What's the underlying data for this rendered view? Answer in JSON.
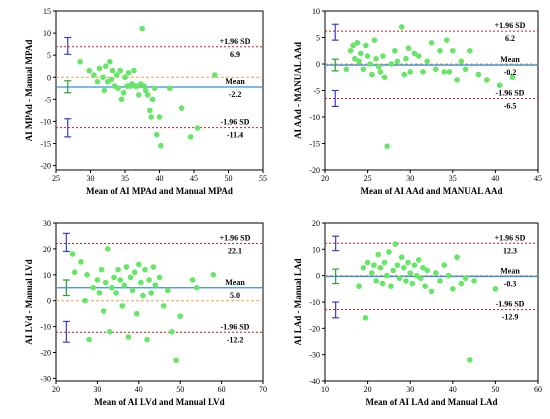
{
  "colors": {
    "mean": "#3a8fd6",
    "limit": "#cc1f1f",
    "zero": "#e8a35a",
    "point": "#66e566",
    "ci_mean": "#2e9c3a",
    "ci_limit": "#3b3bcc"
  },
  "chart_data": [
    {
      "type": "scatter",
      "xlabel": "Mean of AI MPAd and Manual MPAd",
      "ylabel": "AI MPAd - Manual MPAd",
      "xlim": [
        25,
        55
      ],
      "ylim": [
        -21,
        15
      ],
      "xticks": [
        "25",
        "30",
        "35",
        "40",
        "45",
        "50",
        "55"
      ],
      "yticks": [
        "15",
        "10",
        "5",
        "0",
        "-5",
        "-10",
        "-15",
        "-20"
      ],
      "upper_label": "+1.96 SD",
      "upper_value": "6.9",
      "mean_label": "Mean",
      "mean_value": "-2.2",
      "lower_label": "-1.96 SD",
      "lower_value": "-11.4",
      "upper": 6.9,
      "mean": -2.2,
      "lower": -11.4,
      "ci_x": 26.7,
      "ci_upper": [
        5.2,
        9.0
      ],
      "ci_mean": [
        -3.5,
        -0.8
      ],
      "ci_lower": [
        -13.5,
        -9.4
      ],
      "points": [
        [
          28.5,
          3.5
        ],
        [
          29.8,
          1.5
        ],
        [
          30.5,
          0.5
        ],
        [
          31,
          -1
        ],
        [
          31.3,
          2
        ],
        [
          31.8,
          0
        ],
        [
          32,
          -3
        ],
        [
          32.2,
          2.5
        ],
        [
          32.5,
          -1
        ],
        [
          32.8,
          3.5
        ],
        [
          33,
          -0.5
        ],
        [
          33.2,
          1.5
        ],
        [
          33.5,
          -2
        ],
        [
          33.8,
          0.5
        ],
        [
          34,
          -2.5
        ],
        [
          34.3,
          1.5
        ],
        [
          34.5,
          -5
        ],
        [
          34.8,
          -3.5
        ],
        [
          35,
          0
        ],
        [
          35.3,
          -2
        ],
        [
          35.5,
          1
        ],
        [
          35.8,
          -2
        ],
        [
          36,
          -1.5
        ],
        [
          36.3,
          1.5
        ],
        [
          36.5,
          -2
        ],
        [
          36.8,
          -2
        ],
        [
          37,
          -4
        ],
        [
          37.3,
          -1.5
        ],
        [
          37.5,
          11
        ],
        [
          37.8,
          -2
        ],
        [
          38,
          -3
        ],
        [
          38.3,
          -4
        ],
        [
          38.6,
          -7.5
        ],
        [
          38.8,
          -9
        ],
        [
          39,
          -5
        ],
        [
          39.3,
          -2.5
        ],
        [
          39.6,
          -13
        ],
        [
          40,
          -9
        ],
        [
          40.2,
          -15.5
        ],
        [
          41.5,
          -2.5
        ],
        [
          43.2,
          -7
        ],
        [
          44.5,
          -13.5
        ],
        [
          45.5,
          -11.5
        ],
        [
          48,
          0.5
        ]
      ]
    },
    {
      "type": "scatter",
      "xlabel": "Mean of AI AAd and MANUAL AAd",
      "ylabel": "AI AAd - MANUAL AAd",
      "xlim": [
        20,
        45
      ],
      "ylim": [
        -20,
        10
      ],
      "xticks": [
        "20",
        "25",
        "30",
        "35",
        "40",
        "45"
      ],
      "yticks": [
        "10",
        "5",
        "0",
        "-5",
        "-10",
        "-15",
        "-20"
      ],
      "upper_label": "+1.96 SD",
      "upper_value": "6.2",
      "mean_label": "Mean",
      "mean_value": "-0.2",
      "lower_label": "-1.96 SD",
      "lower_value": "-6.5",
      "upper": 6.2,
      "mean": -0.2,
      "lower": -6.5,
      "ci_x": 21.2,
      "ci_upper": [
        4.5,
        7.5
      ],
      "ci_mean": [
        -1.3,
        0.9
      ],
      "ci_lower": [
        -8.0,
        -5.0
      ],
      "points": [
        [
          22.5,
          -1
        ],
        [
          23,
          2.5
        ],
        [
          23.3,
          3.5
        ],
        [
          23.5,
          1
        ],
        [
          23.8,
          4
        ],
        [
          24,
          0.5
        ],
        [
          24.2,
          2
        ],
        [
          24.5,
          -1
        ],
        [
          24.8,
          3.5
        ],
        [
          25,
          1.5
        ],
        [
          25.3,
          0
        ],
        [
          25.5,
          -2
        ],
        [
          25.8,
          4.5
        ],
        [
          26,
          1
        ],
        [
          26.3,
          -0.5
        ],
        [
          26.5,
          -1.5
        ],
        [
          26.8,
          1.5
        ],
        [
          27,
          -2.5
        ],
        [
          27.3,
          -15.5
        ],
        [
          27.8,
          0
        ],
        [
          28.2,
          2.5
        ],
        [
          28.5,
          0.5
        ],
        [
          29,
          7
        ],
        [
          29.3,
          -2
        ],
        [
          29.5,
          1
        ],
        [
          29.8,
          3
        ],
        [
          30,
          -1.5
        ],
        [
          30.5,
          2
        ],
        [
          31,
          1.5
        ],
        [
          31.5,
          -1.5
        ],
        [
          32,
          0.5
        ],
        [
          32.5,
          4
        ],
        [
          33,
          -1
        ],
        [
          33.5,
          2.5
        ],
        [
          34,
          -1.5
        ],
        [
          34.3,
          4.5
        ],
        [
          34.6,
          -1.5
        ],
        [
          35,
          2.5
        ],
        [
          35.5,
          -3
        ],
        [
          36,
          0.5
        ],
        [
          36.5,
          -1
        ],
        [
          37,
          2.5
        ],
        [
          38,
          -2
        ],
        [
          39,
          -3
        ],
        [
          40.5,
          -4
        ],
        [
          42,
          -2.5
        ]
      ]
    },
    {
      "type": "scatter",
      "xlabel": "Mean of AI LVd and Manual LVd",
      "ylabel": "AI LVd - Manual LVd",
      "xlim": [
        20,
        70
      ],
      "ylim": [
        -31,
        30
      ],
      "xticks": [
        "20",
        "30",
        "40",
        "50",
        "60",
        "70"
      ],
      "yticks": [
        "30",
        "20",
        "10",
        "0",
        "-10",
        "-20",
        "-30"
      ],
      "upper_label": "+1.96 SD",
      "upper_value": "22.1",
      "mean_label": "Mean",
      "mean_value": "5.0",
      "lower_label": "-1.96 SD",
      "lower_value": "-12.2",
      "upper": 22.1,
      "mean": 5.0,
      "lower": -12.2,
      "ci_x": 22.5,
      "ci_upper": [
        19,
        26
      ],
      "ci_mean": [
        2,
        8
      ],
      "ci_lower": [
        -16,
        -8
      ],
      "points": [
        [
          24,
          18
        ],
        [
          24.5,
          11
        ],
        [
          26,
          15
        ],
        [
          27,
          0
        ],
        [
          27.5,
          10
        ],
        [
          28,
          -15
        ],
        [
          29,
          5
        ],
        [
          30,
          8
        ],
        [
          30.5,
          3
        ],
        [
          31,
          12
        ],
        [
          31.5,
          -4
        ],
        [
          32,
          7
        ],
        [
          32.5,
          20
        ],
        [
          33,
          -12
        ],
        [
          33.5,
          5
        ],
        [
          34,
          9
        ],
        [
          34.5,
          3
        ],
        [
          35,
          12
        ],
        [
          35.5,
          8
        ],
        [
          36,
          -2
        ],
        [
          36.5,
          6
        ],
        [
          37,
          13
        ],
        [
          37.5,
          -14
        ],
        [
          38,
          9
        ],
        [
          38.5,
          4
        ],
        [
          39,
          11
        ],
        [
          39.5,
          -5
        ],
        [
          40,
          14
        ],
        [
          40.5,
          7
        ],
        [
          41,
          2
        ],
        [
          41.5,
          12
        ],
        [
          42,
          -15
        ],
        [
          42.5,
          8
        ],
        [
          43,
          3
        ],
        [
          43.5,
          13
        ],
        [
          44,
          6
        ],
        [
          45,
          9
        ],
        [
          46,
          -2
        ],
        [
          47,
          4
        ],
        [
          48,
          -12
        ],
        [
          49,
          -23
        ],
        [
          50,
          -6
        ],
        [
          53,
          8
        ],
        [
          54,
          5
        ],
        [
          58,
          10
        ]
      ]
    },
    {
      "type": "scatter",
      "xlabel": "Mean of AI LAd and Manual LAd",
      "ylabel": "AI LAd - Manual LAd",
      "xlim": [
        10,
        60
      ],
      "ylim": [
        -40,
        20
      ],
      "xticks": [
        "10",
        "20",
        "30",
        "40",
        "50",
        "60"
      ],
      "yticks": [
        "20",
        "10",
        "0",
        "-10",
        "-20",
        "-30",
        "-40"
      ],
      "upper_label": "+1.96 SD",
      "upper_value": "12.3",
      "mean_label": "Mean",
      "mean_value": "-0.3",
      "lower_label": "-1.96 SD",
      "lower_value": "-12.9",
      "upper": 12.3,
      "mean": -0.3,
      "lower": -12.9,
      "ci_x": 12.5,
      "ci_upper": [
        9.5,
        15
      ],
      "ci_mean": [
        -3,
        2.5
      ],
      "ci_lower": [
        -16,
        -10
      ],
      "points": [
        [
          18,
          -4
        ],
        [
          19,
          3
        ],
        [
          19.5,
          -16
        ],
        [
          20,
          5
        ],
        [
          21,
          1
        ],
        [
          21.5,
          4
        ],
        [
          22,
          -2
        ],
        [
          22.5,
          8
        ],
        [
          23,
          3
        ],
        [
          23.5,
          -3
        ],
        [
          24,
          5
        ],
        [
          24.5,
          0
        ],
        [
          25,
          9
        ],
        [
          25.5,
          -4
        ],
        [
          26,
          2
        ],
        [
          26.5,
          12
        ],
        [
          27,
          4
        ],
        [
          27.5,
          -1
        ],
        [
          28,
          7
        ],
        [
          28.5,
          3
        ],
        [
          29,
          -2
        ],
        [
          29.5,
          5
        ],
        [
          30,
          1
        ],
        [
          30.5,
          -3
        ],
        [
          31,
          4
        ],
        [
          31.5,
          0
        ],
        [
          32,
          6
        ],
        [
          32.5,
          -1
        ],
        [
          33,
          3
        ],
        [
          33.5,
          -4
        ],
        [
          34,
          2
        ],
        [
          35,
          -6
        ],
        [
          36,
          1
        ],
        [
          37,
          -2
        ],
        [
          38,
          4
        ],
        [
          39,
          0
        ],
        [
          40,
          -5
        ],
        [
          41,
          7
        ],
        [
          42,
          -3
        ],
        [
          43,
          -1
        ],
        [
          44,
          -32
        ],
        [
          45,
          -2
        ],
        [
          50,
          -5
        ]
      ]
    }
  ]
}
